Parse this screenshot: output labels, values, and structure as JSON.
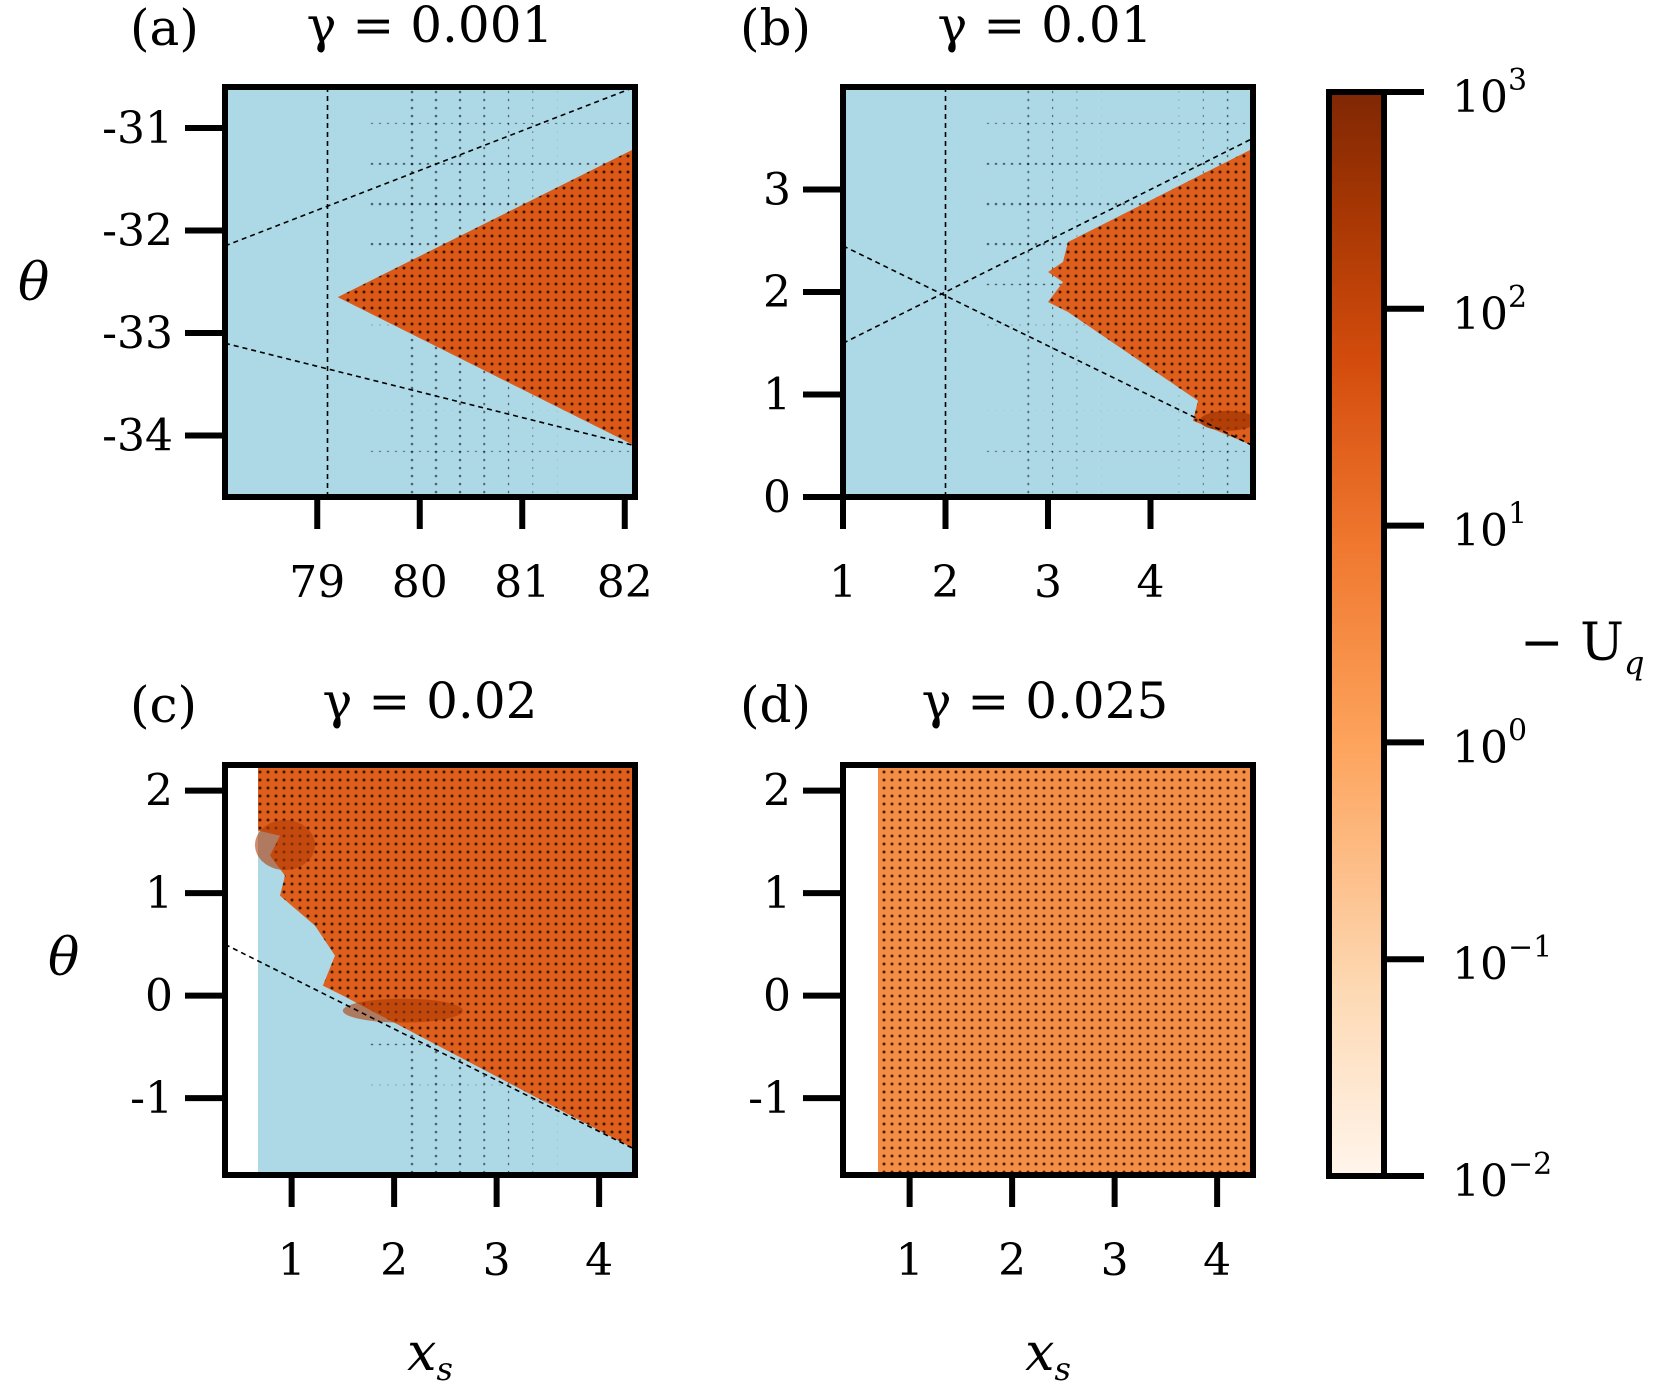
{
  "chart_data": [
    {
      "type": "heatmap",
      "label": "(a)",
      "title": "γ = 0.001",
      "xlabel": "",
      "ylabel": "θ",
      "xlim": [
        78.1,
        82.1
      ],
      "ylim": [
        -34.6,
        -30.6
      ],
      "xticks": [
        "79",
        "80",
        "81",
        "82"
      ],
      "xtick_values": [
        79,
        80,
        81,
        82
      ],
      "yticks": [
        "-31",
        "-32",
        "-33",
        "-34"
      ],
      "ytick_values": [
        -31,
        -32,
        -33,
        -34
      ],
      "stable_region_color": "#add8e6",
      "unstable_region": {
        "apex": [
          79.2,
          -32.65
        ],
        "upper_edge": [
          82.1,
          -31.2
        ],
        "lower_edge": [
          82.1,
          -34.1
        ],
        "notched": false
      },
      "dashed_lines": [
        [
          [
            78.1,
            -32.15
          ],
          [
            82.1,
            -30.6
          ]
        ],
        [
          [
            78.1,
            -33.1
          ],
          [
            82.1,
            -34.1
          ]
        ],
        [
          [
            79.1,
            -30.6
          ],
          [
            79.1,
            -34.6
          ]
        ]
      ],
      "color_level": 0.62
    },
    {
      "type": "heatmap",
      "label": "(b)",
      "title": "γ = 0.01",
      "xlabel": "",
      "ylabel": "",
      "xlim": [
        1.0,
        5.0
      ],
      "ylim": [
        0.0,
        4.0
      ],
      "xticks": [
        "1",
        "2",
        "3",
        "4"
      ],
      "xtick_values": [
        1,
        2,
        3,
        4
      ],
      "yticks": [
        "3",
        "2",
        "1",
        "0"
      ],
      "ytick_values": [
        3,
        2,
        1,
        0
      ],
      "stable_region_color": "#add8e6",
      "unstable_region": {
        "apex": [
          3.0,
          2.0
        ],
        "upper_edge": [
          5.0,
          3.4
        ],
        "lower_edge": [
          5.0,
          0.5
        ],
        "notched": true
      },
      "dashed_lines": [
        [
          [
            1.0,
            1.5
          ],
          [
            5.0,
            3.5
          ]
        ],
        [
          [
            1.0,
            2.45
          ],
          [
            5.0,
            0.5
          ]
        ],
        [
          [
            2.0,
            0.0
          ],
          [
            2.0,
            4.0
          ]
        ]
      ],
      "color_level": 0.6
    },
    {
      "type": "heatmap",
      "label": "(c)",
      "title": "γ = 0.02",
      "xlabel": "x_s",
      "ylabel": "θ",
      "xlim": [
        0.35,
        4.35
      ],
      "ylim": [
        -1.75,
        2.25
      ],
      "xticks": [
        "1",
        "2",
        "3",
        "4"
      ],
      "xtick_values": [
        1,
        2,
        3,
        4
      ],
      "yticks": [
        "2",
        "1",
        "0",
        "-1"
      ],
      "ytick_values": [
        2,
        1,
        0,
        -1
      ],
      "stable_region_color": "#add8e6",
      "unstable_region": {
        "apex": [
          1.5,
          0.0
        ],
        "upper_edge": [
          4.35,
          2.25
        ],
        "lower_edge": [
          4.35,
          -1.5
        ],
        "notched": true
      },
      "dashed_lines": [
        [
          [
            0.35,
            0.5
          ],
          [
            4.35,
            -1.5
          ]
        ]
      ],
      "color_level": 0.6
    },
    {
      "type": "heatmap",
      "label": "(d)",
      "title": "γ = 0.025",
      "xlabel": "x_s",
      "ylabel": "",
      "xlim": [
        0.35,
        4.35
      ],
      "ylim": [
        -1.75,
        2.25
      ],
      "xticks": [
        "1",
        "2",
        "3",
        "4"
      ],
      "xtick_values": [
        1,
        2,
        3,
        4
      ],
      "yticks": [
        "2",
        "1",
        "0",
        "-1"
      ],
      "ytick_values": [
        2,
        1,
        0,
        -1
      ],
      "stable_region_color": "#add8e6",
      "unstable_region": "all",
      "dashed_lines": [],
      "color_level": 0.42
    }
  ],
  "colorbar": {
    "label": "− U",
    "label_sub": "q",
    "scale": "log",
    "range": [
      0.01,
      1000
    ],
    "ticks": [
      {
        "base": "10",
        "exp": "3",
        "value": 1000
      },
      {
        "base": "10",
        "exp": "2",
        "value": 100
      },
      {
        "base": "10",
        "exp": "1",
        "value": 10
      },
      {
        "base": "10",
        "exp": "0",
        "value": 1
      },
      {
        "base": "10",
        "exp": "−1",
        "value": 0.1
      },
      {
        "base": "10",
        "exp": "−2",
        "value": 0.01
      }
    ],
    "colormap": [
      "#fff5eb",
      "#fdd9b4",
      "#fda35c",
      "#f0782f",
      "#d44c0d",
      "#a33503",
      "#7f2704"
    ]
  }
}
